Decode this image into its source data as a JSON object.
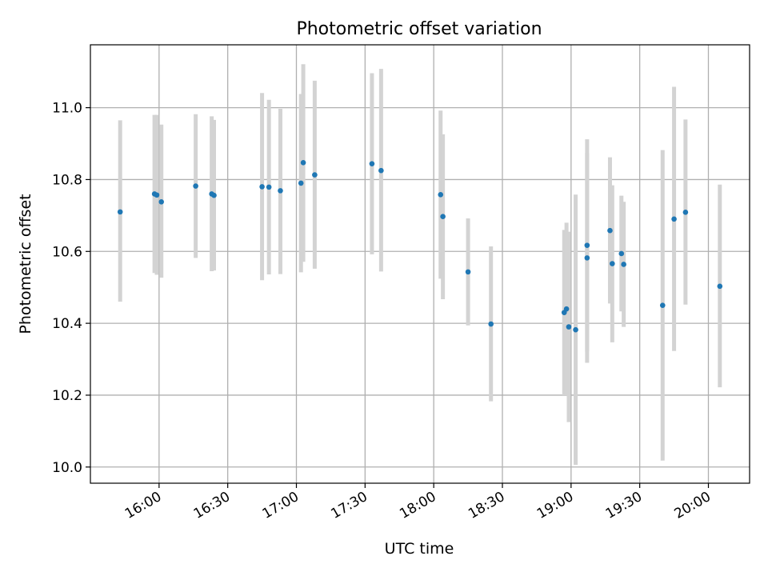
{
  "chart_data": {
    "type": "scatter",
    "title": "Photometric offset variation",
    "xlabel": "UTC time",
    "ylabel": "Photometric offset",
    "xlim": [
      "15:30",
      "20:18"
    ],
    "ylim": [
      9.955,
      11.175
    ],
    "x_ticks": [
      "16:00",
      "16:30",
      "17:00",
      "17:30",
      "18:00",
      "18:30",
      "19:00",
      "19:30",
      "20:00"
    ],
    "y_ticks": [
      "10.0",
      "10.2",
      "10.4",
      "10.6",
      "10.8",
      "11.0"
    ],
    "grid": true,
    "colors": {
      "point": "#1f77b4",
      "errorbar": "#d3d3d3",
      "grid": "#b0b0b0"
    },
    "series": [
      {
        "points": [
          {
            "x": "15:43",
            "y": 10.71,
            "low": 10.46,
            "high": 10.965
          },
          {
            "x": "15:58",
            "y": 10.76,
            "low": 10.54,
            "high": 10.98
          },
          {
            "x": "15:59",
            "y": 10.757,
            "low": 10.535,
            "high": 10.98
          },
          {
            "x": "16:01",
            "y": 10.738,
            "low": 10.527,
            "high": 10.953
          },
          {
            "x": "16:16",
            "y": 10.782,
            "low": 10.582,
            "high": 10.982
          },
          {
            "x": "16:23",
            "y": 10.76,
            "low": 10.545,
            "high": 10.976
          },
          {
            "x": "16:24",
            "y": 10.756,
            "low": 10.547,
            "high": 10.966
          },
          {
            "x": "16:45",
            "y": 10.78,
            "low": 10.52,
            "high": 11.041
          },
          {
            "x": "16:48",
            "y": 10.779,
            "low": 10.536,
            "high": 11.022
          },
          {
            "x": "16:53",
            "y": 10.769,
            "low": 10.537,
            "high": 10.997
          },
          {
            "x": "17:02",
            "y": 10.79,
            "low": 10.542,
            "high": 11.038
          },
          {
            "x": "17:03",
            "y": 10.847,
            "low": 10.571,
            "high": 11.121
          },
          {
            "x": "17:08",
            "y": 10.813,
            "low": 10.552,
            "high": 11.075
          },
          {
            "x": "17:33",
            "y": 10.844,
            "low": 10.592,
            "high": 11.096
          },
          {
            "x": "17:37",
            "y": 10.825,
            "low": 10.544,
            "high": 11.108
          },
          {
            "x": "18:03",
            "y": 10.758,
            "low": 10.524,
            "high": 10.992
          },
          {
            "x": "18:04",
            "y": 10.697,
            "low": 10.467,
            "high": 10.926
          },
          {
            "x": "18:15",
            "y": 10.543,
            "low": 10.394,
            "high": 10.692
          },
          {
            "x": "18:25",
            "y": 10.398,
            "low": 10.183,
            "high": 10.614
          },
          {
            "x": "18:57",
            "y": 10.43,
            "low": 10.2,
            "high": 10.66
          },
          {
            "x": "18:58",
            "y": 10.44,
            "low": 10.2,
            "high": 10.68
          },
          {
            "x": "18:59",
            "y": 10.39,
            "low": 10.125,
            "high": 10.655
          },
          {
            "x": "19:02",
            "y": 10.382,
            "low": 10.006,
            "high": 10.758
          },
          {
            "x": "19:07",
            "y": 10.617,
            "low": 10.322,
            "high": 10.912
          },
          {
            "x": "19:07",
            "y": 10.582,
            "low": 10.29,
            "high": 10.874
          },
          {
            "x": "19:17",
            "y": 10.658,
            "low": 10.455,
            "high": 10.862
          },
          {
            "x": "19:18",
            "y": 10.566,
            "low": 10.347,
            "high": 10.784
          },
          {
            "x": "19:22",
            "y": 10.594,
            "low": 10.433,
            "high": 10.755
          },
          {
            "x": "19:23",
            "y": 10.564,
            "low": 10.39,
            "high": 10.738
          },
          {
            "x": "19:40",
            "y": 10.45,
            "low": 10.018,
            "high": 10.882
          },
          {
            "x": "19:45",
            "y": 10.69,
            "low": 10.323,
            "high": 11.058
          },
          {
            "x": "19:50",
            "y": 10.709,
            "low": 10.452,
            "high": 10.967
          },
          {
            "x": "20:05",
            "y": 10.503,
            "low": 10.222,
            "high": 10.786
          }
        ]
      }
    ]
  }
}
